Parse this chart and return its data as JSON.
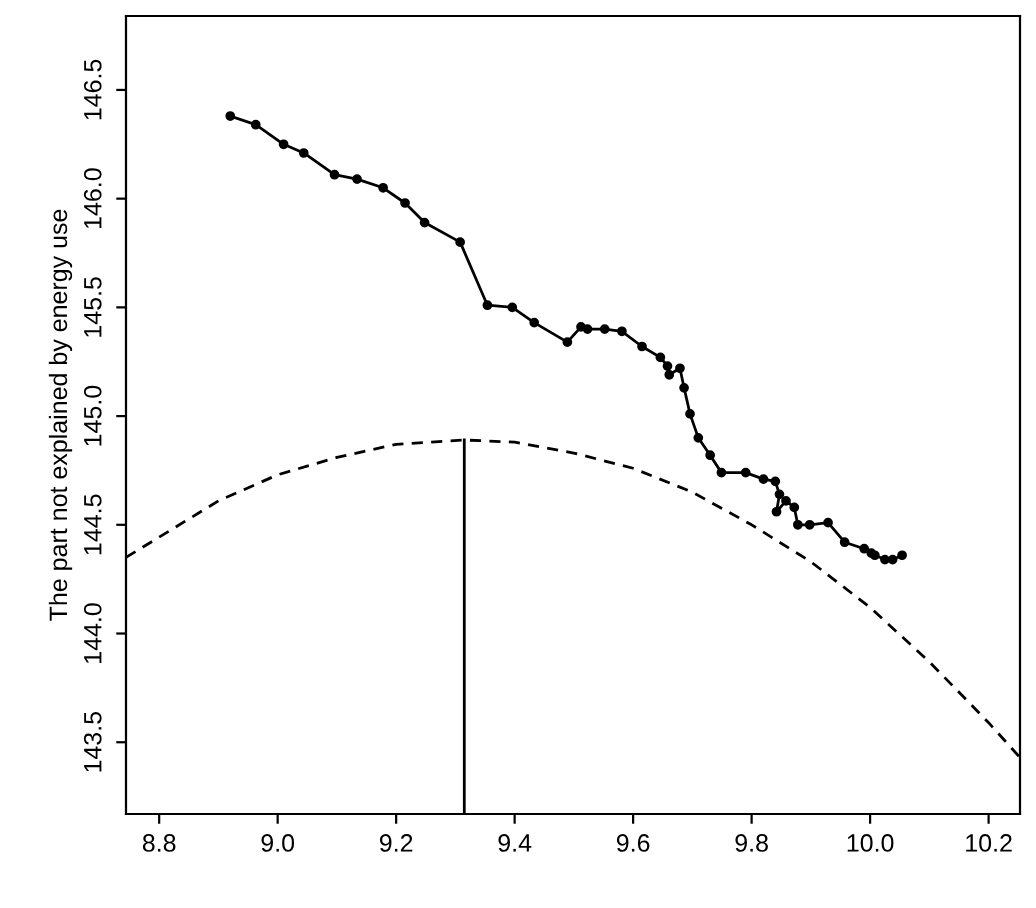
{
  "chart_data": {
    "type": "line",
    "ylabel": "The part not explained by energy use",
    "xlim": [
      8.744,
      10.253
    ],
    "ylim": [
      143.17,
      146.84
    ],
    "xticks": [
      {
        "value": 8.8,
        "label": "8.8"
      },
      {
        "value": 9.0,
        "label": "9.0"
      },
      {
        "value": 9.2,
        "label": "9.2"
      },
      {
        "value": 9.4,
        "label": "9.4"
      },
      {
        "value": 9.6,
        "label": "9.6"
      },
      {
        "value": 9.8,
        "label": "9.8"
      },
      {
        "value": 10.0,
        "label": "10.0"
      },
      {
        "value": 10.2,
        "label": "10.2"
      }
    ],
    "yticks": [
      {
        "value": 143.5,
        "label": "143.5"
      },
      {
        "value": 144.0,
        "label": "144.0"
      },
      {
        "value": 144.5,
        "label": "144.5"
      },
      {
        "value": 145.0,
        "label": "145.0"
      },
      {
        "value": 145.5,
        "label": "145.5"
      },
      {
        "value": 146.0,
        "label": "146.0"
      },
      {
        "value": 146.5,
        "label": "146.5"
      }
    ],
    "grid": false,
    "legend": false,
    "series": [
      {
        "color": "#000000",
        "marker": "circle",
        "line_style": "solid",
        "x": [
          8.92,
          8.963,
          9.01,
          9.044,
          9.096,
          9.134,
          9.178,
          9.215,
          9.248,
          9.308,
          9.354,
          9.396,
          9.433,
          9.489,
          9.512,
          9.523,
          9.552,
          9.581,
          9.615,
          9.646,
          9.658,
          9.661,
          9.679,
          9.686,
          9.696,
          9.71,
          9.73,
          9.749,
          9.79,
          9.82,
          9.84,
          9.847,
          9.842,
          9.858,
          9.872,
          9.878,
          9.898,
          9.929,
          9.957,
          9.99,
          10.002,
          10.008,
          10.025,
          10.038,
          10.054
        ],
        "values": [
          146.38,
          146.34,
          146.25,
          146.21,
          146.11,
          146.09,
          146.05,
          145.98,
          145.89,
          145.8,
          145.51,
          145.5,
          145.43,
          145.34,
          145.41,
          145.4,
          145.4,
          145.39,
          145.32,
          145.27,
          145.23,
          145.19,
          145.22,
          145.13,
          145.01,
          144.9,
          144.82,
          144.74,
          144.74,
          144.71,
          144.7,
          144.64,
          144.56,
          144.61,
          144.58,
          144.5,
          144.5,
          144.51,
          144.42,
          144.39,
          144.37,
          144.36,
          144.34,
          144.34,
          144.36
        ]
      },
      {
        "color": "#000000",
        "marker": "none",
        "line_style": "dashed",
        "x": [
          8.744,
          8.9,
          9.0,
          9.1,
          9.2,
          9.315,
          9.4,
          9.5,
          9.6,
          9.7,
          9.8,
          9.9,
          10.0,
          10.1,
          10.2,
          10.253
        ],
        "values": [
          144.35,
          144.61,
          144.73,
          144.81,
          144.87,
          144.89,
          144.88,
          144.83,
          144.76,
          144.65,
          144.5,
          144.33,
          144.12,
          143.87,
          143.59,
          143.43
        ]
      },
      {
        "color": "#000000",
        "marker": "none",
        "line_style": "solid",
        "x": [
          9.315,
          9.315
        ],
        "values": [
          143.17,
          144.89
        ]
      }
    ]
  }
}
